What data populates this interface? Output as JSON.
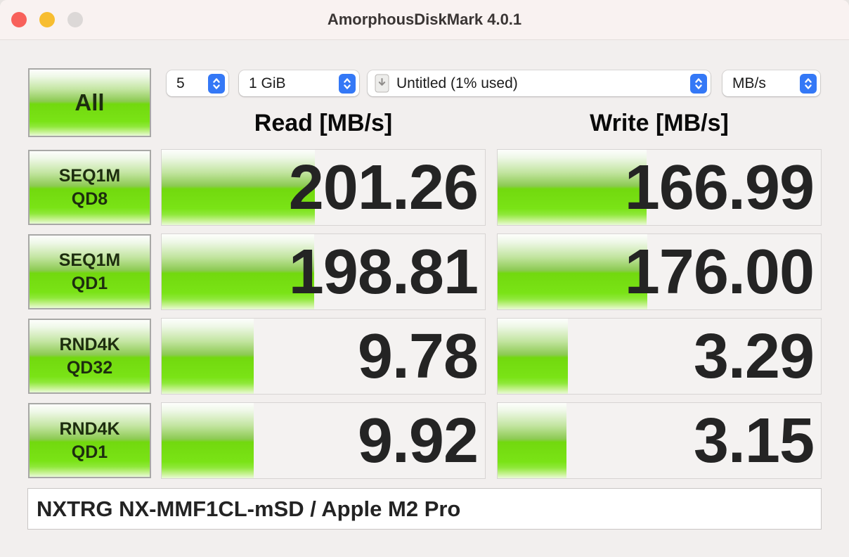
{
  "window": {
    "title": "AmorphousDiskMark 4.0.1"
  },
  "controls": {
    "trial_count": "5",
    "test_size": "1 GiB",
    "volume": "Untitled (1% used)",
    "unit": "MB/s"
  },
  "all_button": {
    "label": "All"
  },
  "results": {
    "read_header": "Read [MB/s]",
    "write_header": "Write [MB/s]",
    "rows": [
      {
        "test": "SEQ1M",
        "queue_depth": "QD8",
        "read_value": "201.26",
        "read_bar_percent": 47.3,
        "write_value": "166.99",
        "write_bar_percent": 46.1
      },
      {
        "test": "SEQ1M",
        "queue_depth": "QD1",
        "read_value": "198.81",
        "read_bar_percent": 47.1,
        "write_value": "176.00",
        "write_bar_percent": 46.4
      },
      {
        "test": "RND4K",
        "queue_depth": "QD32",
        "read_value": "9.78",
        "read_bar_percent": 28.4,
        "write_value": "3.29",
        "write_bar_percent": 21.7
      },
      {
        "test": "RND4K",
        "queue_depth": "QD1",
        "read_value": "9.92",
        "read_bar_percent": 28.5,
        "write_value": "3.15",
        "write_bar_percent": 21.4
      }
    ]
  },
  "footer": {
    "device_info": "NXTRG NX-MMF1CL-mSD / Apple M2 Pro"
  },
  "colors": {
    "accent_blue": "#3478f6",
    "bar_green": "#74dd12",
    "close_red": "#f8615b",
    "minimize_yellow": "#f7bd30",
    "zoom_disabled_gray": "#dcd8d7",
    "window_background": "#f2efee"
  }
}
